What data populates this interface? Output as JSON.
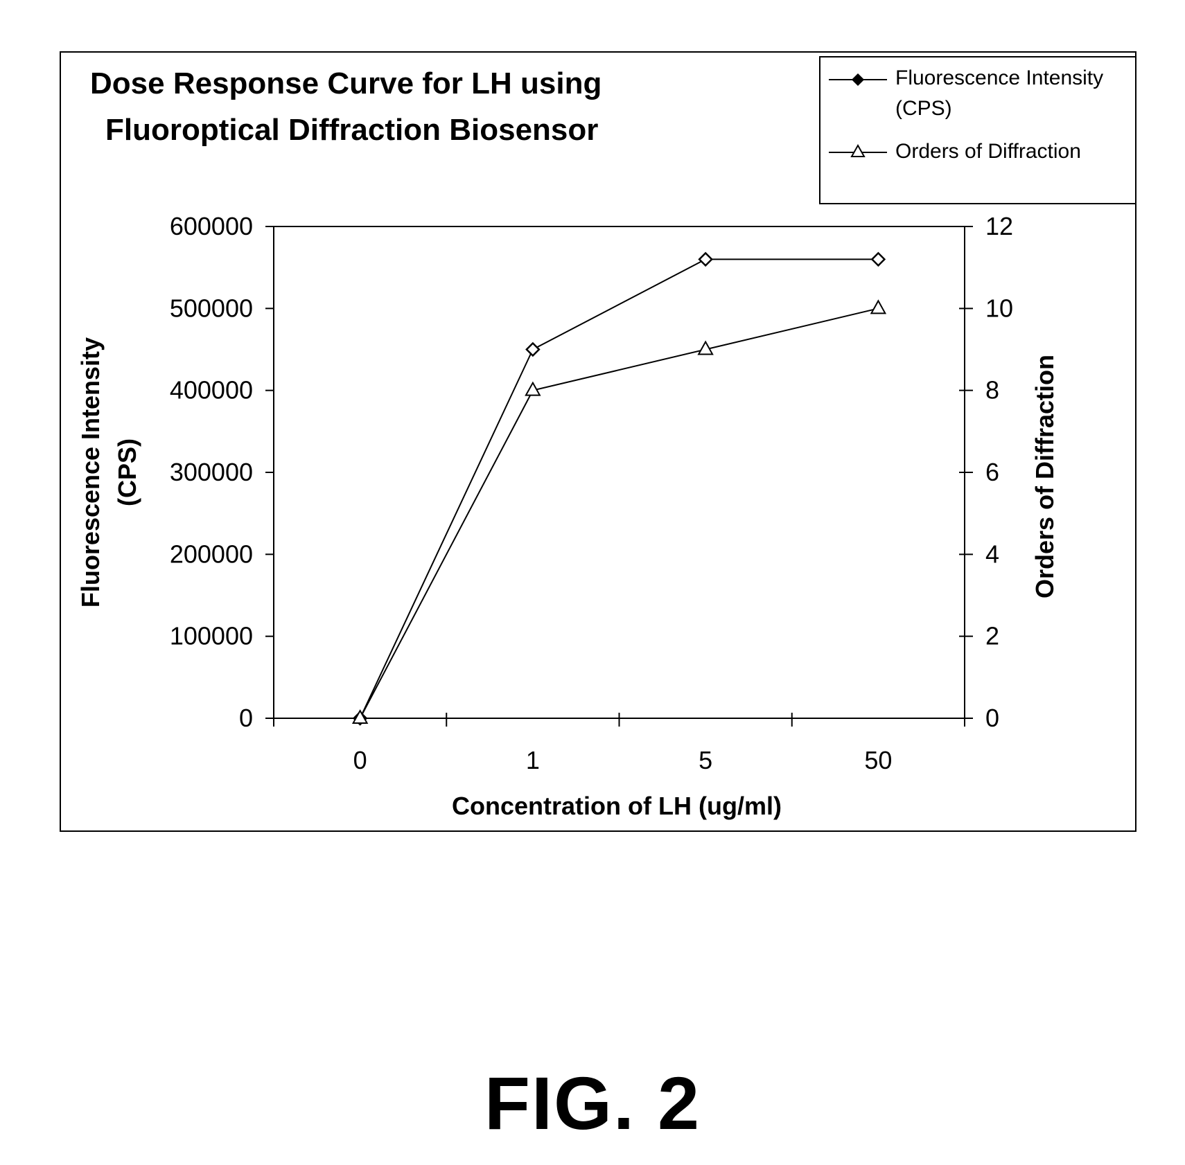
{
  "chart_data": {
    "type": "line",
    "title": [
      "Dose Response Curve for LH using",
      "Fluoroptical Diffraction Biosensor"
    ],
    "categories": [
      "0",
      "1",
      "5",
      "50"
    ],
    "xlabel": "Concentration of LH (ug/ml)",
    "ylabel": [
      "Fluorescence Intensity",
      "(CPS)"
    ],
    "y2label": "Orders of Diffraction",
    "ylim": [
      0,
      600000
    ],
    "y2lim": [
      0,
      12
    ],
    "yticks": [
      "0",
      "100000",
      "200000",
      "300000",
      "400000",
      "500000",
      "600000"
    ],
    "y2ticks": [
      "0",
      "2",
      "4",
      "6",
      "8",
      "10",
      "12"
    ],
    "series": [
      {
        "name": "Fluorescence Intensity (CPS)",
        "legend_lines": [
          "Fluorescence Intensity",
          "(CPS)"
        ],
        "axis": "left",
        "marker": "diamond",
        "values": [
          0,
          450000,
          560000,
          560000
        ]
      },
      {
        "name": "Orders of Diffraction",
        "legend_lines": [
          "Orders of Diffraction"
        ],
        "axis": "right",
        "marker": "triangle",
        "values": [
          0,
          8,
          9,
          10
        ]
      }
    ],
    "legend": "top-right",
    "grid": false
  },
  "caption": "FIG. 2",
  "colors": {
    "ink": "#000000",
    "background": "#ffffff"
  }
}
